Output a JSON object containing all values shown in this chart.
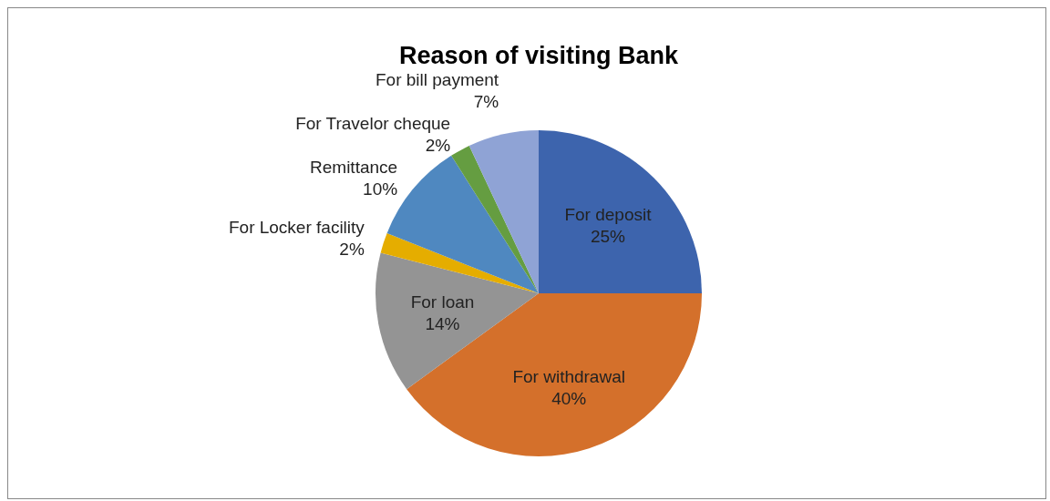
{
  "chart_data": {
    "type": "pie",
    "title": "Reason of visiting Bank",
    "categories": [
      "For deposit",
      "For withdrawal",
      "For loan",
      "For Locker facility",
      "Remittance",
      "For Travelor cheque",
      "For bill payment"
    ],
    "values": [
      25,
      40,
      14,
      2,
      10,
      2,
      7
    ],
    "value_labels": [
      "25%",
      "40%",
      "14%",
      "2%",
      "10%",
      "2%",
      "7%"
    ],
    "colors": [
      "#3d64ad",
      "#d4702b",
      "#949494",
      "#e5ad00",
      "#4f88c0",
      "#659d41",
      "#8fa3d5"
    ]
  }
}
